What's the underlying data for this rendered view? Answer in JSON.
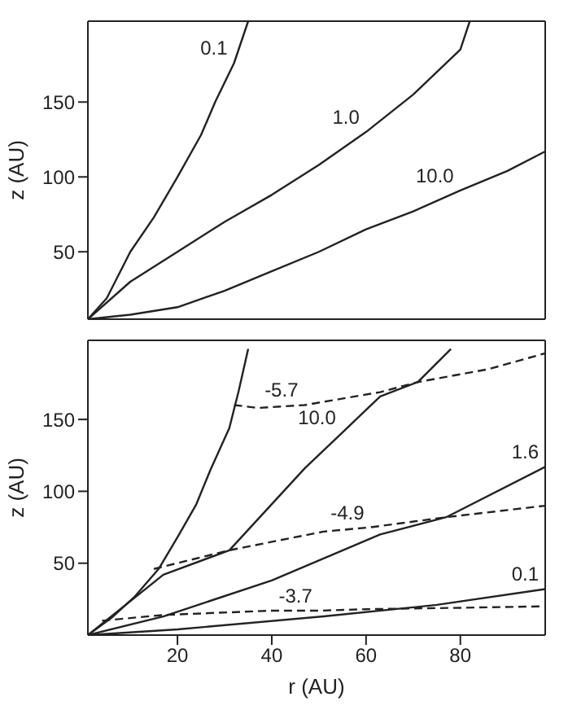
{
  "chart_data": [
    {
      "type": "line",
      "ylabel": "z (AU)",
      "xlim": [
        1,
        98
      ],
      "ylim": [
        5,
        204
      ],
      "xticks": [
        20,
        40,
        60,
        80
      ],
      "yticks": [
        50,
        100,
        150
      ],
      "tick_labels": "y",
      "grid": false,
      "marker": "none",
      "series": [
        {
          "color": "#222222",
          "line_style": "solid",
          "x": [
            1,
            5,
            10,
            15,
            20,
            25,
            28,
            32,
            35
          ],
          "values": [
            5,
            19,
            50,
            73,
            100,
            128,
            150,
            176,
            204
          ]
        },
        {
          "color": "#222222",
          "line_style": "solid",
          "x": [
            1,
            10,
            20,
            30,
            40,
            50,
            60,
            70,
            80,
            82
          ],
          "values": [
            5,
            30,
            50,
            70,
            88,
            108,
            130,
            155,
            185,
            204
          ]
        },
        {
          "color": "#222222",
          "line_style": "solid",
          "x": [
            1,
            10,
            20,
            30,
            40,
            50,
            60,
            70,
            80,
            90,
            98
          ],
          "values": [
            5,
            8,
            13,
            24,
            37,
            50,
            65,
            77,
            91,
            104,
            117
          ]
        }
      ],
      "annotations": [
        {
          "text": "0.1",
          "x": 32,
          "y": 176
        },
        {
          "text": "1.0",
          "x": 60,
          "y": 130
        },
        {
          "text": "10.0",
          "x": 80,
          "y": 91
        }
      ]
    },
    {
      "type": "line",
      "xlabel": "r (AU)",
      "ylabel": "z (AU)",
      "xlim": [
        1,
        98
      ],
      "ylim": [
        0,
        205
      ],
      "xticks": [
        20,
        40,
        60,
        80
      ],
      "yticks": [
        50,
        100,
        150
      ],
      "grid": false,
      "marker": "none",
      "series": [
        {
          "color": "#222222",
          "line_style": "solid",
          "x": [
            1,
            6,
            11,
            16,
            20,
            24,
            27,
            31,
            33,
            35
          ],
          "values": [
            0,
            12,
            27,
            46,
            68,
            91,
            115,
            144,
            170,
            199
          ]
        },
        {
          "color": "#222222",
          "line_style": "solid",
          "x": [
            1,
            17,
            31,
            47,
            55,
            63,
            71,
            78
          ],
          "values": [
            0,
            42,
            59,
            116,
            141,
            166,
            176,
            199
          ]
        },
        {
          "color": "#222222",
          "line_style": "solid",
          "x": [
            1,
            17,
            40,
            63,
            77,
            98
          ],
          "values": [
            0,
            13,
            38,
            70,
            82,
            117
          ]
        },
        {
          "color": "#222222",
          "line_style": "solid",
          "x": [
            1,
            20,
            51,
            75,
            98
          ],
          "values": [
            0,
            4,
            13,
            21,
            32
          ]
        },
        {
          "color": "#222222",
          "line_style": "dashed",
          "x": [
            4,
            17,
            40,
            50,
            60,
            80,
            98
          ],
          "values": [
            10,
            14,
            17,
            17,
            18,
            19,
            20
          ]
        },
        {
          "color": "#222222",
          "line_style": "dashed",
          "x": [
            15,
            31,
            51,
            61,
            77,
            98
          ],
          "values": [
            46,
            59,
            72,
            75,
            82,
            90
          ]
        },
        {
          "color": "#222222",
          "line_style": "dashed",
          "x": [
            32,
            37,
            47,
            63,
            71,
            86,
            98
          ],
          "values": [
            160,
            158,
            160,
            169,
            176,
            185,
            196
          ]
        }
      ],
      "annotations": [
        {
          "text": "-5.7",
          "x": 47,
          "y": 160
        },
        {
          "text": "10.0",
          "x": 55,
          "y": 141
        },
        {
          "text": "1.6",
          "x": 98,
          "y": 117
        },
        {
          "text": "-4.9",
          "x": 61,
          "y": 75
        },
        {
          "text": "0.1",
          "x": 98,
          "y": 32
        },
        {
          "text": "-3.7",
          "x": 50,
          "y": 17
        }
      ]
    }
  ]
}
